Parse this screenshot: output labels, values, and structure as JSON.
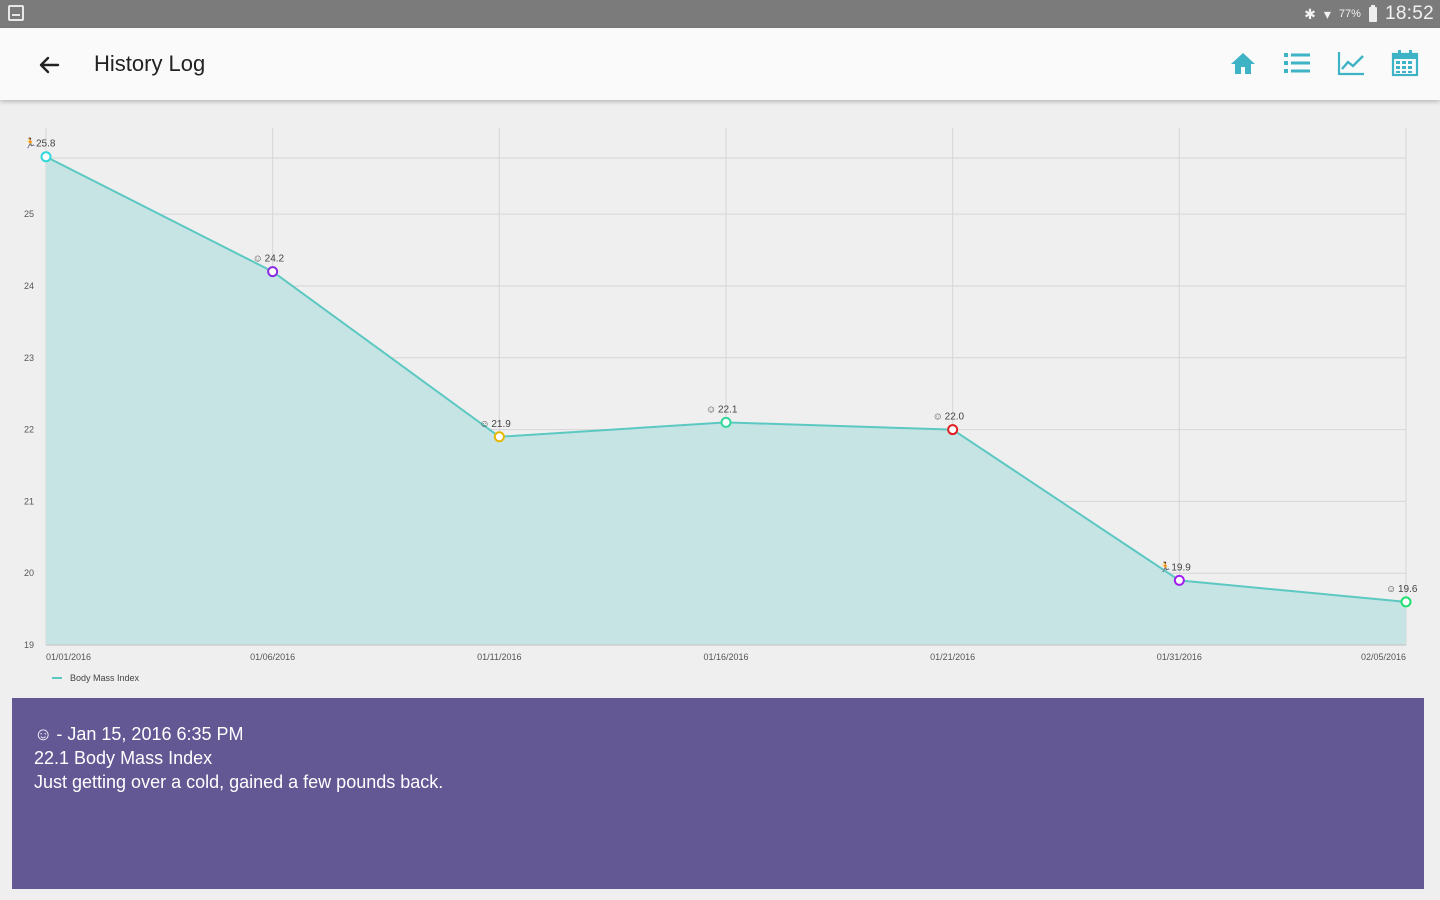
{
  "status_bar": {
    "battery_percent": "77%",
    "time": "18:52"
  },
  "app_bar": {
    "title": "History Log",
    "actions": [
      "home-icon",
      "list-icon",
      "chart-icon",
      "calendar-icon"
    ],
    "accent": "#3fb3c6"
  },
  "chart_data": {
    "type": "area",
    "x": [
      "01/01/2016",
      "01/06/2016",
      "01/11/2016",
      "01/16/2016",
      "01/21/2016",
      "01/31/2016",
      "02/05/2016"
    ],
    "series": [
      {
        "name": "Body Mass Index",
        "values": [
          25.8,
          24.2,
          21.9,
          22.1,
          22.0,
          19.9,
          19.6
        ],
        "mood_icons": [
          "runner-icon",
          "neutral-face-icon",
          "neutral-face-icon",
          "neutral-face-icon",
          "neutral-face-icon",
          "runner-icon",
          "neutral-face-icon"
        ],
        "marker_colors": [
          "#2fd9d9",
          "#8a2be2",
          "#e6b800",
          "#2fd99a",
          "#e02020",
          "#a020f0",
          "#20e070"
        ]
      }
    ],
    "y_ticks": [
      19,
      20,
      21,
      22,
      23,
      24,
      25
    ],
    "ylim": [
      19,
      26.2
    ],
    "grid": true,
    "legend": "bottom-left",
    "line_color": "#5cc8c2",
    "fill_color": "#c6e4e3"
  },
  "info_panel": {
    "date": "Jan 15, 2016 6:35 PM",
    "measurement": "22.1 Body Mass Index",
    "note": "Just getting over a cold, gained a few pounds back.",
    "background": "#635894"
  }
}
